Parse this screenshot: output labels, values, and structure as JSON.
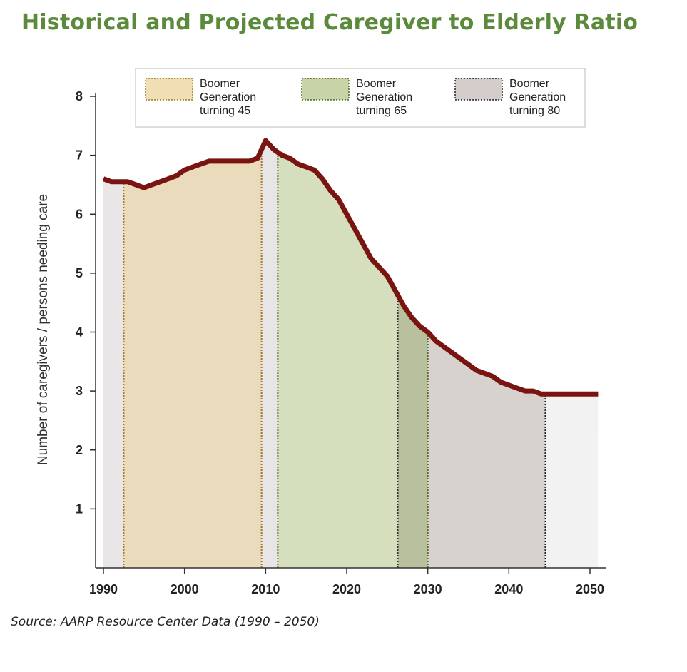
{
  "title": "Historical and Projected Caregiver to Elderly Ratio",
  "source": "Source: AARP Resource Center Data (1990 – 2050)",
  "chart_data": {
    "type": "area",
    "title": "Historical and Projected Caregiver to Elderly Ratio",
    "ylabel": "Number of caregivers / persons needing care",
    "xlabel": "",
    "xlim": [
      1990,
      2051
    ],
    "ylim": [
      0,
      8
    ],
    "x_ticks": [
      "1990",
      "2000",
      "2010",
      "2020",
      "2030",
      "2040",
      "2050"
    ],
    "y_ticks": [
      "1",
      "2",
      "3",
      "4",
      "5",
      "6",
      "7",
      "8"
    ],
    "line_color": "#7a1410",
    "series": [
      {
        "x": [
          1990,
          1991,
          1993,
          1994,
          1995,
          1996,
          1997,
          1998,
          1999,
          2000,
          2001,
          2002,
          2003,
          2004,
          2005,
          2006,
          2007,
          2008,
          2009,
          2010,
          2011,
          2012,
          2013,
          2014,
          2015,
          2016,
          2017,
          2018,
          2019,
          2020,
          2021,
          2022,
          2023,
          2024,
          2025,
          2026,
          2027,
          2028,
          2029,
          2030,
          2031,
          2032,
          2033,
          2034,
          2035,
          2036,
          2037,
          2038,
          2039,
          2040,
          2041,
          2042,
          2043,
          2044,
          2045,
          2050,
          2051
        ],
        "y": [
          6.6,
          6.55,
          6.55,
          6.5,
          6.45,
          6.5,
          6.55,
          6.6,
          6.65,
          6.75,
          6.8,
          6.85,
          6.9,
          6.9,
          6.9,
          6.9,
          6.9,
          6.9,
          6.95,
          7.25,
          7.1,
          7.0,
          6.95,
          6.85,
          6.8,
          6.75,
          6.6,
          6.4,
          6.25,
          6.0,
          5.75,
          5.5,
          5.25,
          5.1,
          4.95,
          4.7,
          4.45,
          4.25,
          4.1,
          4.0,
          3.85,
          3.75,
          3.65,
          3.55,
          3.45,
          3.35,
          3.3,
          3.25,
          3.15,
          3.1,
          3.05,
          3.0,
          3.0,
          2.95,
          2.95,
          2.95,
          2.95
        ]
      }
    ],
    "bands": [
      {
        "from": 1990,
        "to": 1992.5,
        "color": "#e9e6e8"
      },
      {
        "from": 1992.5,
        "to": 2009.5,
        "color": "#eadbbd"
      },
      {
        "from": 2009.5,
        "to": 2011.5,
        "color": "#e8e5e7"
      },
      {
        "from": 2011.5,
        "to": 2026.3,
        "color": "#d6dfbd"
      },
      {
        "from": 2026.3,
        "to": 2030,
        "color": "#b9c09e"
      },
      {
        "from": 2030,
        "to": 2044.5,
        "color": "#d8d2cf"
      },
      {
        "from": 2044.5,
        "to": 2051,
        "color": "#f3f2f2"
      }
    ],
    "band_edges": [
      {
        "x": 1992.5,
        "color": "#a07820"
      },
      {
        "x": 2009.5,
        "color": "#a07820"
      },
      {
        "x": 2011.5,
        "color": "#4d6b22"
      },
      {
        "x": 2026.3,
        "color": "#333333"
      },
      {
        "x": 2030,
        "color": "#4d6b22"
      },
      {
        "x": 2044.5,
        "color": "#222222"
      }
    ],
    "legend": {
      "position": "top",
      "entries": [
        {
          "line1": "Boomer",
          "line2": "Generation",
          "line3": "turning 45",
          "color": "#f0dfb4",
          "border": "#a07820"
        },
        {
          "line1": "Boomer",
          "line2": "Generation",
          "line3": "turning 65",
          "color": "#c8d4a8",
          "border": "#4d6b22"
        },
        {
          "line1": "Boomer",
          "line2": "Generation",
          "line3": "turning 80",
          "color": "#d4cdcb",
          "border": "#222222"
        }
      ]
    }
  }
}
